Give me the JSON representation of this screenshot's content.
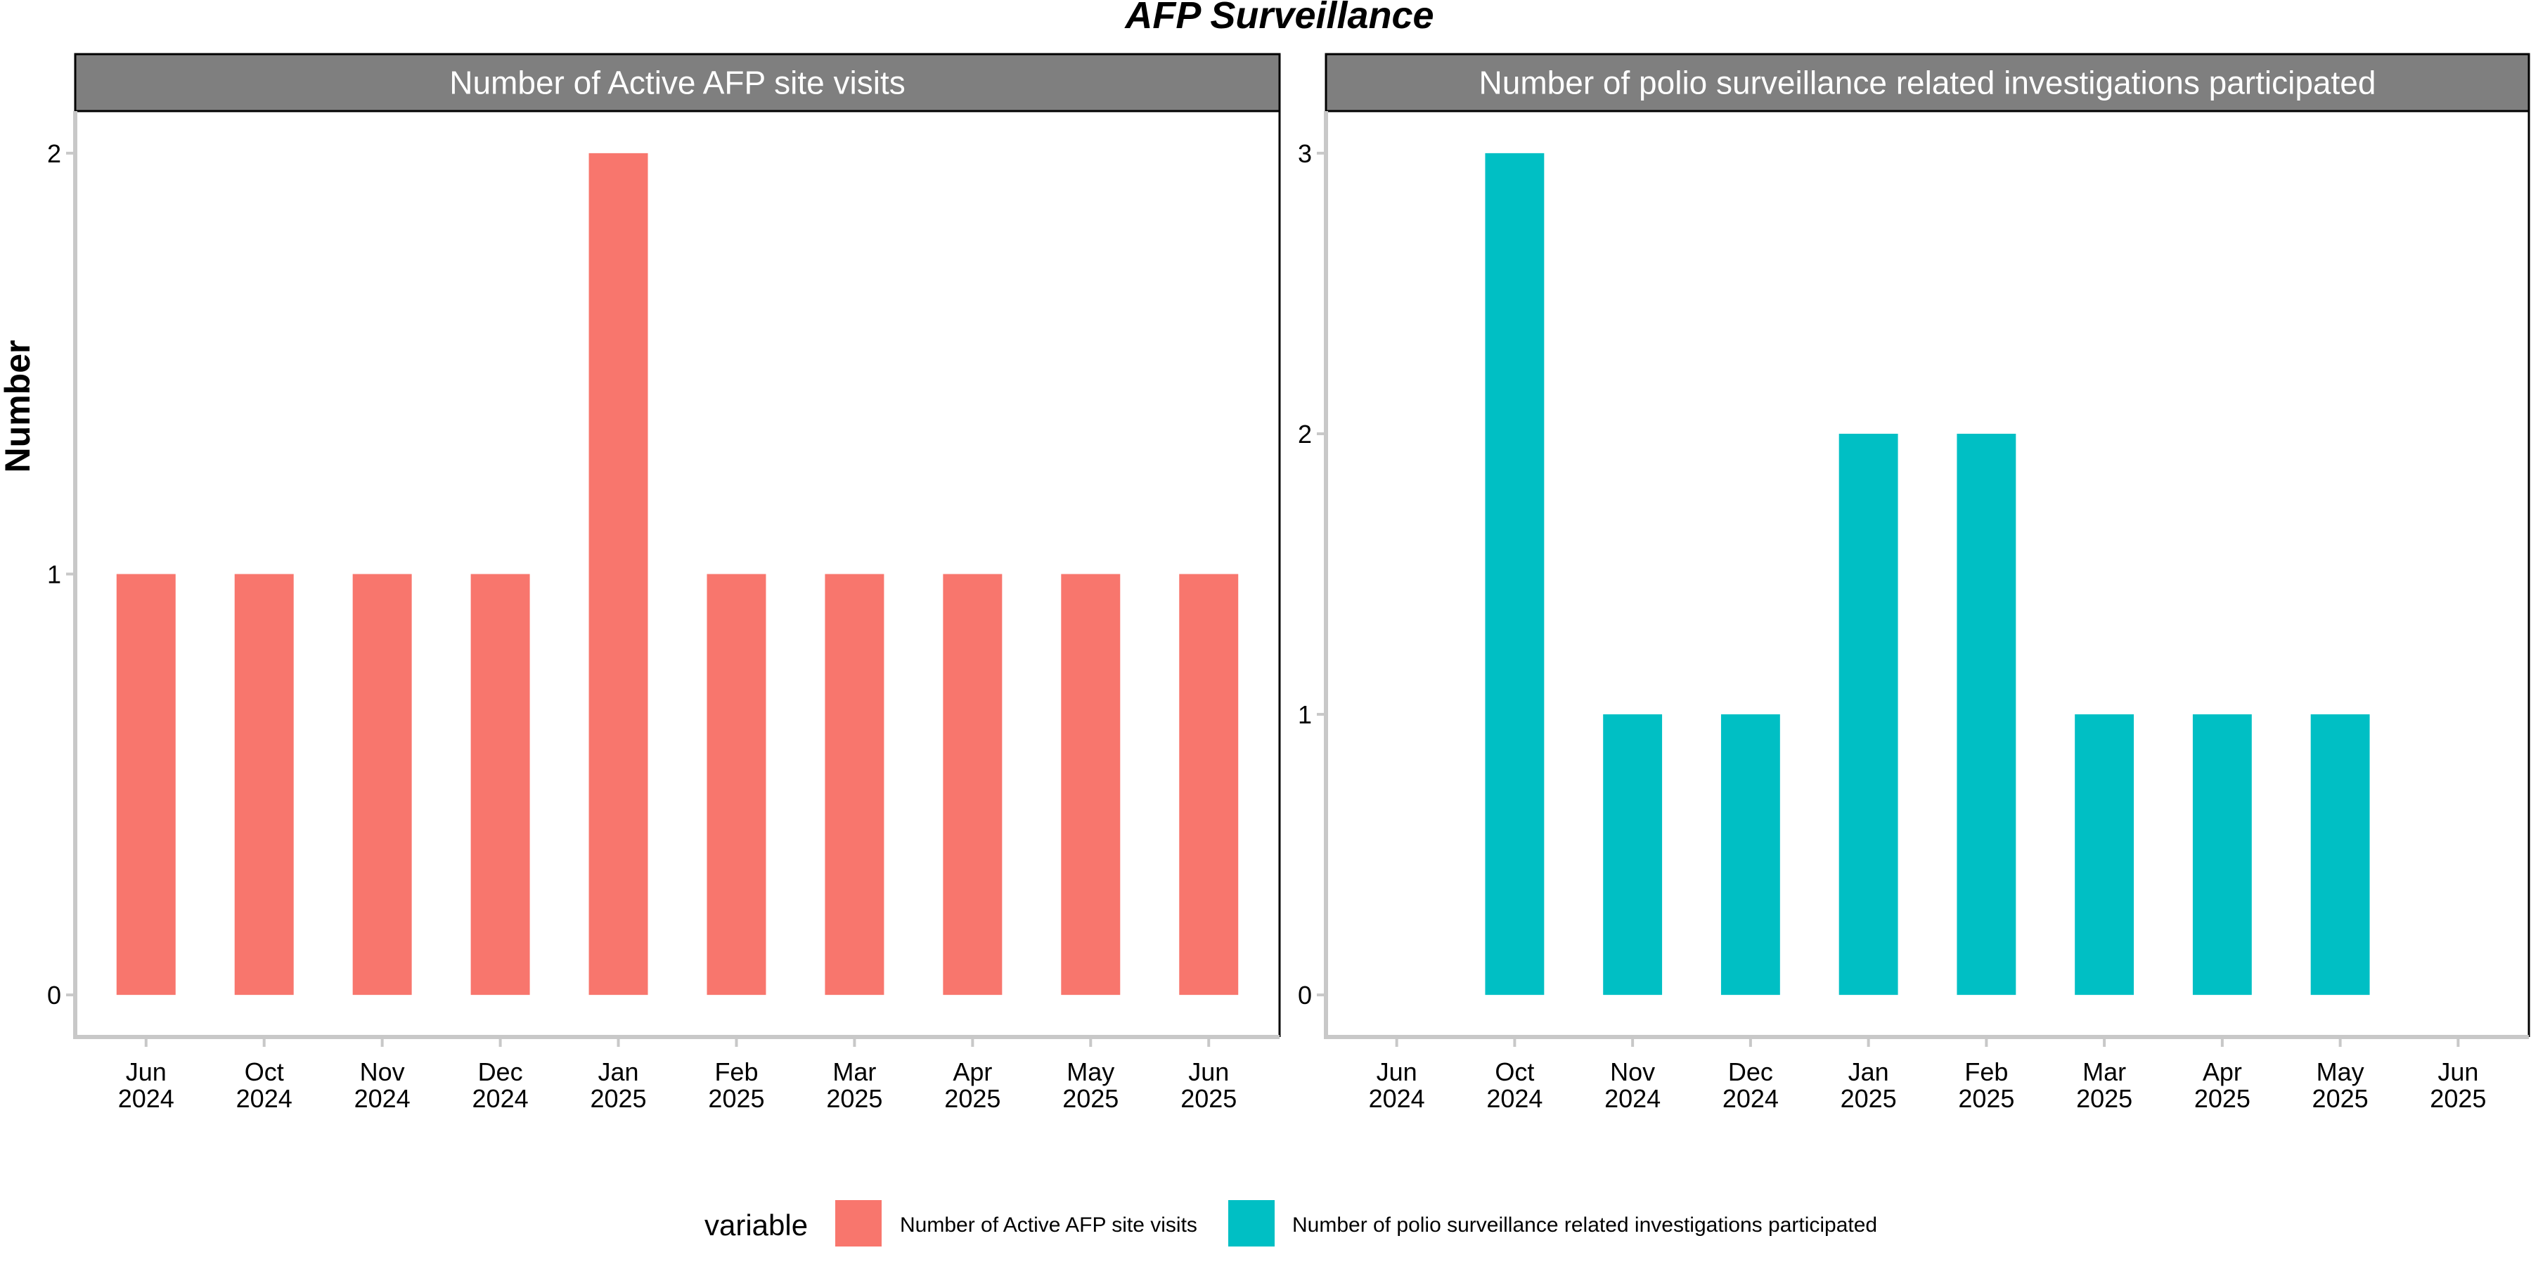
{
  "figure": {
    "title": "AFP Surveillance",
    "ylabel": "Number"
  },
  "legend": {
    "title": "variable",
    "placement": "bottom"
  },
  "colors": {
    "strip_background": "#7f7f7f",
    "strip_text": "#ffffff",
    "axis_line": "#c8c8c8",
    "panel_border": "#000000",
    "text": "#000000"
  },
  "chart_data": [
    {
      "type": "bar",
      "title": "Number of Active AFP site visits",
      "xlabel": "",
      "ylabel": "Number",
      "categories": [
        "Jun\n2024",
        "Oct\n2024",
        "Nov\n2024",
        "Dec\n2024",
        "Jan\n2025",
        "Feb\n2025",
        "Mar\n2025",
        "Apr\n2025",
        "May\n2025",
        "Jun\n2025"
      ],
      "series": [
        {
          "name": "Number of Active AFP site visits",
          "color": "#F8766D",
          "values": [
            1,
            1,
            1,
            1,
            2,
            1,
            1,
            1,
            1,
            1
          ]
        }
      ],
      "yticks": [
        0,
        1,
        2
      ],
      "ylim": [
        -0.1,
        2.1
      ],
      "grid": false
    },
    {
      "type": "bar",
      "title": "Number of polio surveillance related investigations participated",
      "xlabel": "",
      "ylabel": "Number",
      "categories": [
        "Jun\n2024",
        "Oct\n2024",
        "Nov\n2024",
        "Dec\n2024",
        "Jan\n2025",
        "Feb\n2025",
        "Mar\n2025",
        "Apr\n2025",
        "May\n2025",
        "Jun\n2025"
      ],
      "series": [
        {
          "name": "Number of polio surveillance related investigations participated",
          "color": "#00BFC4",
          "values": [
            null,
            3,
            1,
            1,
            2,
            2,
            1,
            1,
            1,
            null
          ]
        }
      ],
      "yticks": [
        0,
        1,
        2,
        3
      ],
      "ylim": [
        -0.15,
        3.15
      ],
      "grid": false
    }
  ]
}
